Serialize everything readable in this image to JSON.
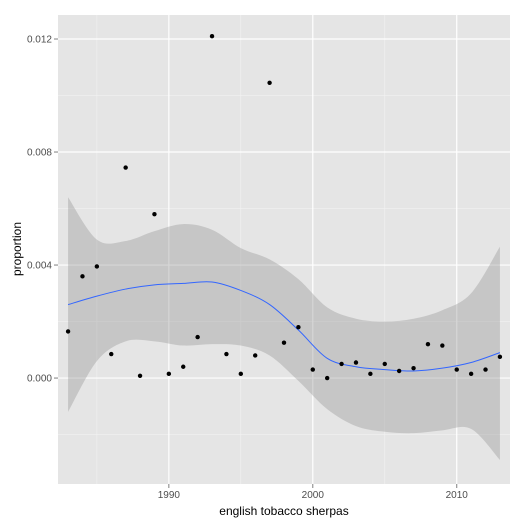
{
  "chart_data": {
    "type": "scatter",
    "xlabel": "english tobacco sherpas",
    "ylabel": "proportion",
    "xlim": [
      1982.3,
      2013.7
    ],
    "ylim": [
      -0.00375,
      0.01285
    ],
    "x_ticks": [
      1990,
      2000,
      2010
    ],
    "x_tick_labels": [
      "1990",
      "2000",
      "2010"
    ],
    "y_ticks": [
      0.0,
      0.004,
      0.008,
      0.012
    ],
    "y_tick_labels": [
      "0.000",
      "0.004",
      "0.008",
      "0.012"
    ],
    "grid": true,
    "panel_background": "#e5e5e5",
    "grid_color": "#ffffff",
    "point_color": "#000000",
    "smooth_color": "#3366ff",
    "band_color": "#999999",
    "points": [
      {
        "x": 1983,
        "y": 0.00165
      },
      {
        "x": 1984,
        "y": 0.0036
      },
      {
        "x": 1985,
        "y": 0.00395
      },
      {
        "x": 1986,
        "y": 0.00085
      },
      {
        "x": 1987,
        "y": 0.00745
      },
      {
        "x": 1988,
        "y": 8e-05
      },
      {
        "x": 1989,
        "y": 0.0058
      },
      {
        "x": 1990,
        "y": 0.00015
      },
      {
        "x": 1991,
        "y": 0.0004
      },
      {
        "x": 1992,
        "y": 0.00145
      },
      {
        "x": 1993,
        "y": 0.0121
      },
      {
        "x": 1994,
        "y": 0.00085
      },
      {
        "x": 1995,
        "y": 0.00015
      },
      {
        "x": 1996,
        "y": 0.0008
      },
      {
        "x": 1997,
        "y": 0.01045
      },
      {
        "x": 1998,
        "y": 0.00125
      },
      {
        "x": 1999,
        "y": 0.0018
      },
      {
        "x": 2000,
        "y": 0.0003
      },
      {
        "x": 2001,
        "y": 0.0
      },
      {
        "x": 2002,
        "y": 0.0005
      },
      {
        "x": 2003,
        "y": 0.00055
      },
      {
        "x": 2004,
        "y": 0.00015
      },
      {
        "x": 2005,
        "y": 0.0005
      },
      {
        "x": 2006,
        "y": 0.00025
      },
      {
        "x": 2007,
        "y": 0.00035
      },
      {
        "x": 2008,
        "y": 0.0012
      },
      {
        "x": 2009,
        "y": 0.00115
      },
      {
        "x": 2010,
        "y": 0.0003
      },
      {
        "x": 2011,
        "y": 0.00015
      },
      {
        "x": 2012,
        "y": 0.0003
      },
      {
        "x": 2013,
        "y": 0.00075
      }
    ],
    "smooth": {
      "x": [
        1983,
        1985,
        1987,
        1989,
        1991,
        1993,
        1995,
        1997,
        1999,
        2001,
        2003,
        2005,
        2007,
        2009,
        2011,
        2013
      ],
      "y": [
        0.0026,
        0.0029,
        0.00315,
        0.0033,
        0.00335,
        0.0034,
        0.0031,
        0.0026,
        0.0017,
        0.0007,
        0.0004,
        0.0003,
        0.00025,
        0.00035,
        0.00055,
        0.0009
      ],
      "lower": [
        -0.0012,
        0.0006,
        0.0013,
        0.0013,
        0.00115,
        0.0012,
        0.00115,
        0.0008,
        -0.0001,
        -0.0011,
        -0.0017,
        -0.0019,
        -0.00195,
        -0.00185,
        -0.0018,
        -0.0029
      ],
      "upper": [
        0.0064,
        0.0049,
        0.00485,
        0.0052,
        0.00545,
        0.00525,
        0.0046,
        0.0042,
        0.0035,
        0.0025,
        0.0021,
        0.002,
        0.0021,
        0.0024,
        0.003,
        0.00465
      ]
    }
  }
}
